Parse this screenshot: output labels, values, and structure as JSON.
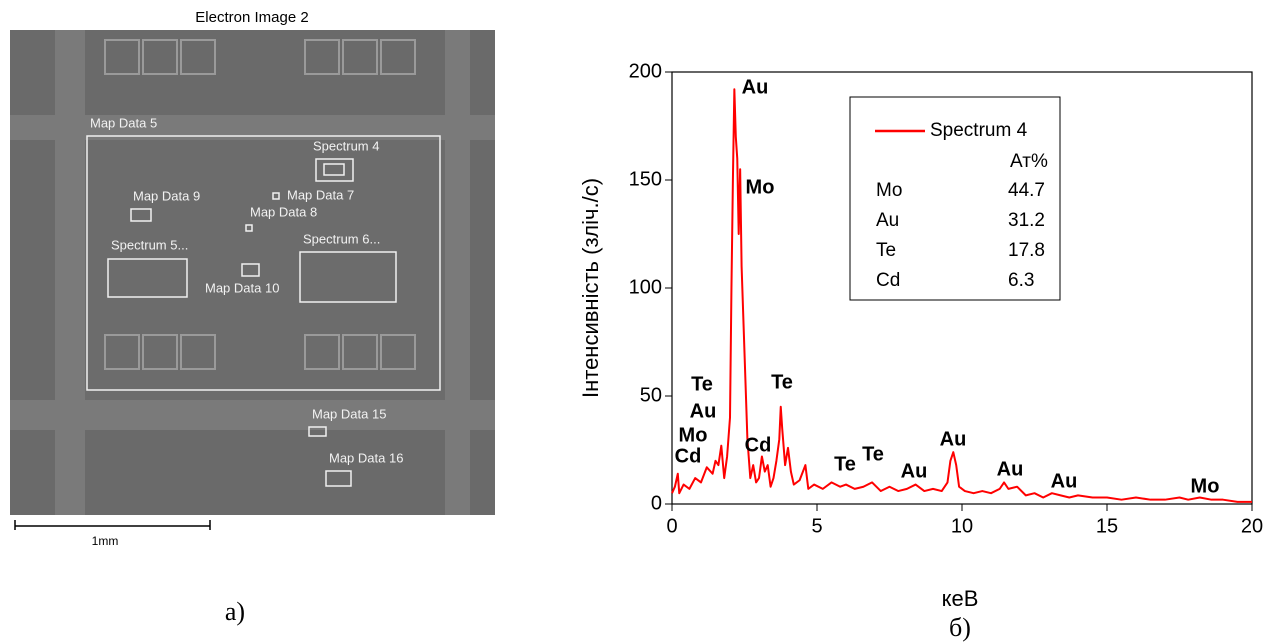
{
  "image_panel": {
    "title": "Electron Image 2",
    "labels": [
      "Map Data 5",
      "Spectrum 4",
      "Map Data 9",
      "Map Data 7",
      "Map Data 8",
      "Spectrum 5...",
      "Spectrum 6...",
      "Map Data 10",
      "Map Data 15",
      "Map Data 16"
    ],
    "scale_bar": "1mm",
    "panel_label": "а)"
  },
  "chart_data": {
    "type": "line",
    "panel_label": "б)",
    "x_label": "кеВ",
    "y_label": "Інтенсивність (зліч./с)",
    "xlim": [
      0,
      20
    ],
    "xticks": [
      0,
      5,
      10,
      15,
      20
    ],
    "ylim": [
      0,
      200
    ],
    "yticks": [
      0,
      50,
      100,
      150,
      200
    ],
    "x": [
      0.0,
      0.1,
      0.2,
      0.25,
      0.4,
      0.6,
      0.8,
      1.0,
      1.2,
      1.4,
      1.5,
      1.6,
      1.7,
      1.8,
      1.9,
      2.0,
      2.05,
      2.1,
      2.15,
      2.2,
      2.25,
      2.3,
      2.35,
      2.4,
      2.5,
      2.6,
      2.7,
      2.8,
      2.9,
      3.0,
      3.1,
      3.2,
      3.3,
      3.4,
      3.5,
      3.6,
      3.7,
      3.75,
      3.8,
      3.9,
      4.0,
      4.1,
      4.2,
      4.4,
      4.6,
      4.7,
      4.9,
      5.2,
      5.5,
      5.8,
      6.0,
      6.3,
      6.6,
      6.9,
      7.2,
      7.5,
      7.8,
      8.1,
      8.4,
      8.7,
      9.0,
      9.3,
      9.5,
      9.6,
      9.7,
      9.8,
      9.9,
      10.1,
      10.4,
      10.7,
      11.0,
      11.3,
      11.45,
      11.6,
      11.9,
      12.2,
      12.5,
      12.8,
      13.1,
      13.4,
      13.7,
      14.0,
      14.5,
      15.0,
      15.5,
      16.0,
      16.5,
      17.0,
      17.5,
      17.8,
      18.2,
      18.6,
      19.0,
      19.5,
      20.0
    ],
    "series": [
      {
        "name": "Spectrum 4",
        "color": "#ff0000",
        "values": [
          5,
          8,
          14,
          5,
          9,
          7,
          12,
          10,
          17,
          14,
          20,
          18,
          27,
          12,
          22,
          40,
          100,
          150,
          192,
          170,
          160,
          125,
          155,
          110,
          70,
          30,
          12,
          18,
          10,
          12,
          22,
          15,
          18,
          8,
          12,
          20,
          30,
          45,
          35,
          18,
          26,
          15,
          9,
          11,
          18,
          7,
          9,
          7,
          10,
          8,
          9,
          7,
          8,
          10,
          6,
          8,
          6,
          7,
          9,
          6,
          7,
          6,
          10,
          20,
          24,
          18,
          8,
          6,
          5,
          6,
          5,
          7,
          10,
          7,
          8,
          4,
          5,
          3,
          5,
          4,
          3,
          4,
          3,
          3,
          2,
          3,
          2,
          2,
          3,
          2,
          3,
          2,
          2,
          1,
          1
        ]
      }
    ],
    "legend_table": {
      "header": "Ат%",
      "rows": [
        [
          "Mo",
          44.7
        ],
        [
          "Au",
          31.2
        ],
        [
          "Te",
          17.8
        ],
        [
          "Cd",
          6.3
        ]
      ]
    },
    "annotations": [
      "Au",
      "Mo",
      "Te",
      "Au",
      "Mo",
      "Cd",
      "Te",
      "Cd",
      "Te",
      "Te",
      "Au",
      "Au",
      "Au",
      "Au",
      "Mo"
    ]
  }
}
